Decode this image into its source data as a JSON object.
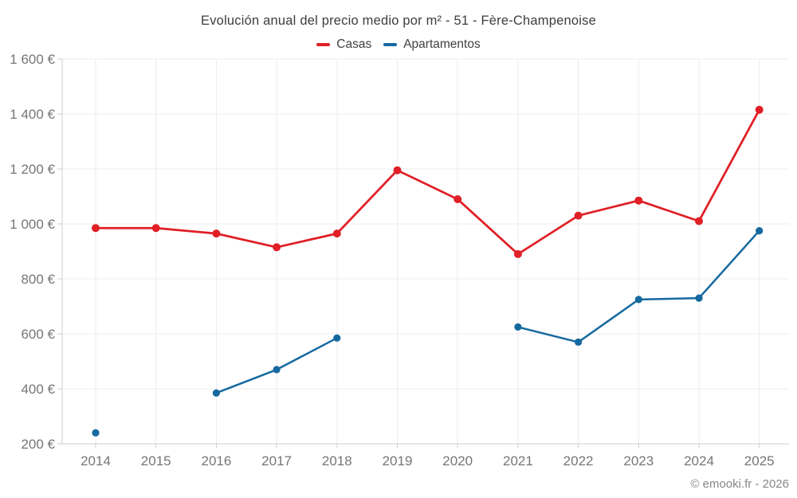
{
  "page": {
    "footer": "© emooki.fr - 2026",
    "background": "#ffffff"
  },
  "chart_data": {
    "type": "line",
    "title": "Evolución anual del precio medio por m² - 51 - Fère-Champenoise",
    "categories": [
      "2014",
      "2015",
      "2016",
      "2017",
      "2018",
      "2019",
      "2020",
      "2021",
      "2022",
      "2023",
      "2024",
      "2025"
    ],
    "series": [
      {
        "name": "Casas",
        "color": "#e01f26",
        "values": [
          985,
          985,
          965,
          915,
          965,
          1195,
          1090,
          890,
          1030,
          1085,
          1010,
          1415
        ]
      },
      {
        "name": "Apartamentos",
        "color": "#1569a0",
        "values": [
          240,
          null,
          385,
          470,
          585,
          null,
          null,
          625,
          570,
          725,
          730,
          975
        ]
      }
    ],
    "xlabel": "",
    "ylabel": "",
    "ylim": [
      200,
      1600
    ],
    "y_ticks": [
      {
        "value": 200,
        "label": "200 €"
      },
      {
        "value": 400,
        "label": "400 €"
      },
      {
        "value": 600,
        "label": "600 €"
      },
      {
        "value": 800,
        "label": "800 €"
      },
      {
        "value": 1000,
        "label": "1 000 €"
      },
      {
        "value": 1200,
        "label": "1 200 €"
      },
      {
        "value": 1400,
        "label": "1 400 €"
      },
      {
        "value": 1600,
        "label": "1 600 €"
      }
    ],
    "grid": true,
    "legend_position": "top",
    "colors": {
      "grid": "#ececec",
      "axis": "#cfcfcf",
      "tick_label": "#767676",
      "title": "#3d3d3d"
    }
  }
}
